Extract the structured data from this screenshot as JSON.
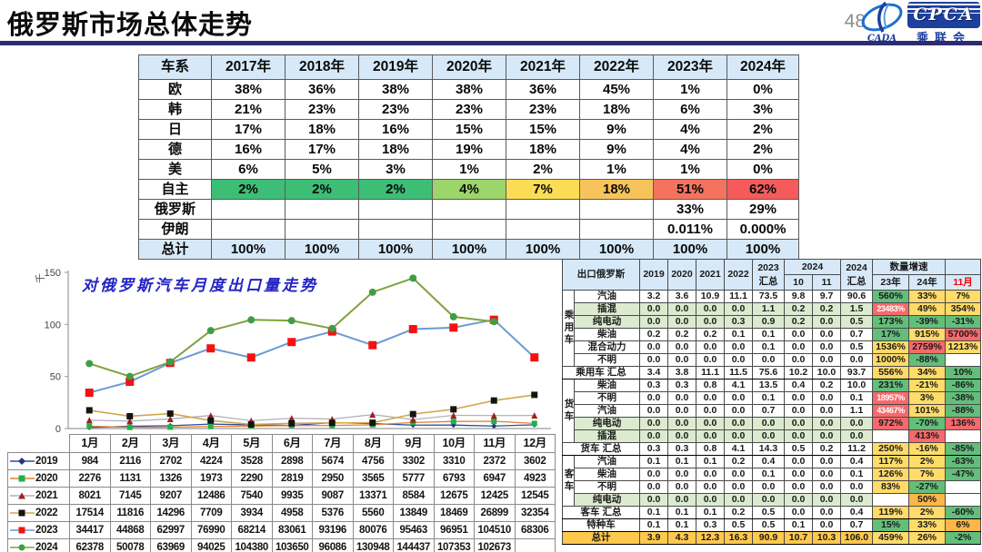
{
  "header": {
    "title": "俄罗斯市场总体走势",
    "page_number": "48",
    "cada_label": "CADA",
    "cpca_label": "CPCA",
    "cpca_sub": "乘联会"
  },
  "share_table": {
    "columns": [
      "车系",
      "2017年",
      "2018年",
      "2019年",
      "2020年",
      "2021年",
      "2022年",
      "2023年",
      "2024年"
    ],
    "rows": [
      {
        "name": "欧",
        "values": [
          "38%",
          "36%",
          "38%",
          "38%",
          "36%",
          "45%",
          "1%",
          "0%"
        ]
      },
      {
        "name": "韩",
        "values": [
          "21%",
          "23%",
          "23%",
          "23%",
          "23%",
          "18%",
          "6%",
          "3%"
        ]
      },
      {
        "name": "日",
        "values": [
          "17%",
          "18%",
          "16%",
          "15%",
          "15%",
          "9%",
          "4%",
          "2%"
        ]
      },
      {
        "name": "德",
        "values": [
          "16%",
          "17%",
          "18%",
          "19%",
          "18%",
          "9%",
          "4%",
          "2%"
        ]
      },
      {
        "name": "美",
        "values": [
          "6%",
          "5%",
          "3%",
          "1%",
          "2%",
          "1%",
          "1%",
          "0%"
        ]
      },
      {
        "name": "自主",
        "values": [
          "2%",
          "2%",
          "2%",
          "4%",
          "7%",
          "18%",
          "51%",
          "62%"
        ],
        "cell_colors": [
          "#3dbe76",
          "#3dbe76",
          "#3dbe76",
          "#9cd56a",
          "#fbdd55",
          "#f7c45b",
          "#f4735f",
          "#f55b5b"
        ]
      },
      {
        "name": "俄罗斯",
        "values": [
          "",
          "",
          "",
          "",
          "",
          "",
          "33%",
          "29%"
        ]
      },
      {
        "name": "伊朗",
        "values": [
          "",
          "",
          "",
          "",
          "",
          "",
          "0.011%",
          "0.000%"
        ]
      },
      {
        "name": "总计",
        "values": [
          "100%",
          "100%",
          "100%",
          "100%",
          "100%",
          "100%",
          "100%",
          "100%"
        ],
        "is_total": true
      }
    ]
  },
  "chart_data": {
    "type": "line",
    "title": "对俄罗斯汽车月度出口量走势",
    "ylabel": "千",
    "ylim": [
      0,
      150
    ],
    "yticks": [
      0,
      50,
      100,
      150
    ],
    "unit_divisor": 1000,
    "categories": [
      "1月",
      "2月",
      "3月",
      "4月",
      "5月",
      "6月",
      "7月",
      "8月",
      "9月",
      "10月",
      "11月",
      "12月"
    ],
    "series": [
      {
        "name": "2019",
        "marker": "diamond",
        "marker_color": "#24357e",
        "line_color": "#2f4b9b",
        "marker_size": 6,
        "line_width": 1.3,
        "values": [
          984,
          2116,
          2702,
          4224,
          3528,
          2898,
          5674,
          4756,
          3302,
          3310,
          2372,
          3602
        ]
      },
      {
        "name": "2020",
        "marker": "square",
        "marker_color": "#1db24a",
        "line_color": "#e2812f",
        "marker_size": 6,
        "line_width": 1.3,
        "values": [
          2276,
          1131,
          1326,
          1973,
          2290,
          2819,
          2950,
          3565,
          5777,
          6793,
          6947,
          4923
        ]
      },
      {
        "name": "2021",
        "marker": "triangle",
        "marker_color": "#9e1f1f",
        "line_color": "#b3b0bf",
        "marker_size": 7,
        "line_width": 1.3,
        "values": [
          8021,
          7145,
          9207,
          12486,
          7540,
          9935,
          9087,
          13371,
          8584,
          12675,
          12425,
          12545
        ]
      },
      {
        "name": "2022",
        "marker": "square",
        "marker_color": "#141414",
        "line_color": "#d0a849",
        "marker_size": 7,
        "line_width": 1.6,
        "values": [
          17514,
          11816,
          14296,
          7709,
          3934,
          4958,
          5376,
          5560,
          13849,
          18469,
          26899,
          32354
        ]
      },
      {
        "name": "2023",
        "marker": "square",
        "marker_color": "#f31111",
        "line_color": "#6b9bd2",
        "marker_size": 9,
        "line_width": 2,
        "values": [
          34417,
          44868,
          62997,
          76990,
          68214,
          83061,
          93196,
          80076,
          95463,
          96951,
          104510,
          68306
        ]
      },
      {
        "name": "2024",
        "marker": "circle",
        "marker_color": "#3f9e45",
        "line_color": "#7fa23b",
        "marker_size": 8,
        "line_width": 2,
        "values": [
          62378,
          50078,
          63969,
          94025,
          104380,
          103650,
          96086,
          130948,
          144437,
          107353,
          102673,
          null
        ]
      }
    ]
  },
  "export_table": {
    "title_cell": "出口俄罗斯",
    "year_headers": [
      "2019",
      "2020",
      "2021",
      "2022"
    ],
    "h2023": "2023\n汇总",
    "h2024_group": "2024",
    "h2024_sub": [
      "10",
      "11"
    ],
    "h2024_total": "2024\n汇总",
    "growth_header": "数量增速",
    "growth_sub": [
      "23年",
      "24年",
      "11月"
    ],
    "color_map": {
      "g": "#63be7b",
      "y": "#ffdb69",
      "o": "#ffb648",
      "r": "#f8696b",
      "w": "#ffffff"
    },
    "rows": [
      {
        "kind": "item",
        "group": "乘用车",
        "span": 6,
        "name": "汽油",
        "values": [
          "3.2",
          "3.6",
          "10.9",
          "11.1",
          "73.5",
          "9.8",
          "9.7",
          "90.6"
        ],
        "growth": [
          [
            "560%",
            "g"
          ],
          [
            "33%",
            "y"
          ],
          [
            "7%",
            "y"
          ]
        ]
      },
      {
        "kind": "item",
        "name": "插混",
        "shade": true,
        "values": [
          "0.0",
          "0.0",
          "0.0",
          "0.0",
          "1.1",
          "0.2",
          "0.2",
          "1.5"
        ],
        "growth": [
          [
            "23483%",
            "r"
          ],
          [
            "49%",
            "y"
          ],
          [
            "354%",
            "y"
          ]
        ]
      },
      {
        "kind": "item",
        "name": "纯电动",
        "shade": true,
        "values": [
          "0.0",
          "0.0",
          "0.0",
          "0.3",
          "0.9",
          "0.2",
          "0.0",
          "0.5"
        ],
        "growth": [
          [
            "173%",
            "g"
          ],
          [
            "-39%",
            "g"
          ],
          [
            "-31%",
            "g"
          ]
        ]
      },
      {
        "kind": "item",
        "name": "柴油",
        "values": [
          "0.2",
          "0.2",
          "0.2",
          "0.1",
          "0.1",
          "0.0",
          "0.0",
          "0.7"
        ],
        "growth": [
          [
            "17%",
            "g"
          ],
          [
            "915%",
            "y"
          ],
          [
            "5700%",
            "r"
          ]
        ]
      },
      {
        "kind": "item",
        "name": "混合动力",
        "values": [
          "0.0",
          "0.0",
          "0.0",
          "0.0",
          "0.1",
          "0.0",
          "0.0",
          "0.5"
        ],
        "growth": [
          [
            "1536%",
            "y"
          ],
          [
            "2759%",
            "r"
          ],
          [
            "1213%",
            "y"
          ]
        ]
      },
      {
        "kind": "item",
        "name": "不明",
        "values": [
          "0.0",
          "0.0",
          "0.0",
          "0.0",
          "0.0",
          "0.0",
          "0.0",
          "0.0"
        ],
        "growth": [
          [
            "1000%",
            "y"
          ],
          [
            "-88%",
            "g"
          ],
          [
            "",
            "w"
          ]
        ]
      },
      {
        "kind": "sum",
        "label": "乘用车 汇总",
        "values": [
          "3.4",
          "3.8",
          "11.1",
          "11.5",
          "75.6",
          "10.2",
          "10.0",
          "93.7"
        ],
        "growth": [
          [
            "556%",
            "y"
          ],
          [
            "34%",
            "y"
          ],
          [
            "10%",
            "g"
          ]
        ]
      },
      {
        "kind": "item",
        "group": "货车",
        "span": 5,
        "name": "柴油",
        "values": [
          "0.3",
          "0.3",
          "0.8",
          "4.1",
          "13.5",
          "0.4",
          "0.2",
          "10.0"
        ],
        "growth": [
          [
            "231%",
            "g"
          ],
          [
            "-21%",
            "y"
          ],
          [
            "-86%",
            "g"
          ]
        ]
      },
      {
        "kind": "item",
        "name": "不明",
        "values": [
          "0.0",
          "0.0",
          "0.0",
          "0.0",
          "0.1",
          "0.0",
          "0.0",
          "0.1"
        ],
        "growth": [
          [
            "18957%",
            "r"
          ],
          [
            "3%",
            "y"
          ],
          [
            "-38%",
            "g"
          ]
        ]
      },
      {
        "kind": "item",
        "name": "汽油",
        "values": [
          "0.0",
          "0.0",
          "0.0",
          "0.0",
          "0.7",
          "0.0",
          "0.0",
          "1.1"
        ],
        "growth": [
          [
            "43467%",
            "r"
          ],
          [
            "101%",
            "y"
          ],
          [
            "-88%",
            "g"
          ]
        ]
      },
      {
        "kind": "item",
        "name": "纯电动",
        "shade": true,
        "values": [
          "0.0",
          "0.0",
          "0.0",
          "0.0",
          "0.0",
          "0.0",
          "0.0",
          "0.0"
        ],
        "growth": [
          [
            "972%",
            "r"
          ],
          [
            "-70%",
            "g"
          ],
          [
            "136%",
            "r"
          ]
        ]
      },
      {
        "kind": "item",
        "name": "插混",
        "shade": true,
        "values": [
          "0.0",
          "0.0",
          "0.0",
          "0.0",
          "0.0",
          "0.0",
          "0.0",
          "0.0"
        ],
        "growth": [
          [
            "",
            "w"
          ],
          [
            "413%",
            "r"
          ],
          [
            "",
            "w"
          ]
        ]
      },
      {
        "kind": "sum",
        "label": "货车 汇总",
        "values": [
          "0.3",
          "0.3",
          "0.8",
          "4.1",
          "14.3",
          "0.5",
          "0.2",
          "11.2"
        ],
        "growth": [
          [
            "250%",
            "y"
          ],
          [
            "-16%",
            "y"
          ],
          [
            "-85%",
            "g"
          ]
        ]
      },
      {
        "kind": "item",
        "group": "客车",
        "span": 4,
        "name": "汽油",
        "values": [
          "0.1",
          "0.1",
          "0.1",
          "0.2",
          "0.4",
          "0.0",
          "0.0",
          "0.4"
        ],
        "growth": [
          [
            "117%",
            "y"
          ],
          [
            "2%",
            "y"
          ],
          [
            "-63%",
            "g"
          ]
        ]
      },
      {
        "kind": "item",
        "name": "柴油",
        "values": [
          "0.0",
          "0.0",
          "0.0",
          "0.0",
          "0.1",
          "0.0",
          "0.0",
          "0.1"
        ],
        "growth": [
          [
            "126%",
            "y"
          ],
          [
            "7%",
            "y"
          ],
          [
            "-47%",
            "g"
          ]
        ]
      },
      {
        "kind": "item",
        "name": "不明",
        "values": [
          "0.0",
          "0.0",
          "0.0",
          "0.0",
          "0.0",
          "0.0",
          "0.0",
          "0.0"
        ],
        "growth": [
          [
            "83%",
            "y"
          ],
          [
            "-27%",
            "g"
          ],
          [
            "",
            "w"
          ]
        ]
      },
      {
        "kind": "item",
        "name": "纯电动",
        "shade": true,
        "values": [
          "0.0",
          "0.0",
          "0.0",
          "0.0",
          "0.0",
          "0.0",
          "0.0",
          "0.0"
        ],
        "growth": [
          [
            "",
            "w"
          ],
          [
            "50%",
            "o"
          ],
          [
            "",
            "w"
          ]
        ]
      },
      {
        "kind": "sum",
        "label": "客车 汇总",
        "values": [
          "0.1",
          "0.1",
          "0.1",
          "0.2",
          "0.5",
          "0.0",
          "0.0",
          "0.4"
        ],
        "growth": [
          [
            "119%",
            "y"
          ],
          [
            "2%",
            "y"
          ],
          [
            "-60%",
            "g"
          ]
        ]
      },
      {
        "kind": "sum",
        "label": "特种车",
        "values": [
          "0.1",
          "0.1",
          "0.3",
          "0.5",
          "0.5",
          "0.1",
          "0.0",
          "0.7"
        ],
        "growth": [
          [
            "15%",
            "g"
          ],
          [
            "33%",
            "y"
          ],
          [
            "6%",
            "o"
          ]
        ]
      },
      {
        "kind": "total",
        "label": "总计",
        "values": [
          "3.9",
          "4.3",
          "12.3",
          "16.3",
          "90.9",
          "10.7",
          "10.3",
          "106.0"
        ],
        "growth": [
          [
            "459%",
            "y"
          ],
          [
            "26%",
            "y"
          ],
          [
            "-2%",
            "g"
          ]
        ]
      }
    ]
  }
}
